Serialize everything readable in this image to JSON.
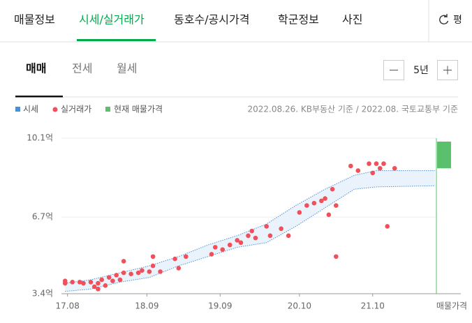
{
  "tabs": [
    "매물정보",
    "시세/실거래가",
    "동호수/공시가격",
    "학군정보",
    "사진"
  ],
  "unit_button": "평",
  "subtabs": [
    "매매",
    "전세",
    "월세"
  ],
  "period": "5년",
  "source": "2022.08.26. KB부동산 기준 / 2022.08. 국토교통부 기준",
  "chart_data": {
    "type": "scatter",
    "xlim": [
      2017.5,
      2022.62
    ],
    "xticks": [
      {
        "value": 2017.583,
        "label": "17.08"
      },
      {
        "value": 2018.667,
        "label": "18.09"
      },
      {
        "value": 2019.667,
        "label": "19.09"
      },
      {
        "value": 2020.75,
        "label": "20.10"
      },
      {
        "value": 2021.75,
        "label": "21.10"
      }
    ],
    "x_end_label": "매물가격",
    "ylim": [
      3.4,
      10.1
    ],
    "yticks": [
      {
        "value": 10.1,
        "label": "10.1억"
      },
      {
        "value": 6.7,
        "label": "6.7억"
      },
      {
        "value": 3.4,
        "label": "3.4억"
      }
    ],
    "series": [
      {
        "name": "시세",
        "color": "#4a90d9",
        "x": [
          2017.55,
          2017.9,
          2018.3,
          2018.7,
          2019.1,
          2019.5,
          2019.9,
          2020.3,
          2020.7,
          2021.1,
          2021.5,
          2021.8,
          2022.6
        ],
        "upper": [
          3.85,
          4.0,
          4.3,
          4.6,
          5.0,
          5.5,
          5.9,
          6.4,
          7.2,
          7.9,
          8.5,
          8.7,
          8.7
        ],
        "lower": [
          3.5,
          3.6,
          3.9,
          4.1,
          4.6,
          5.0,
          5.4,
          5.6,
          6.3,
          7.1,
          7.9,
          8.0,
          8.05
        ]
      },
      {
        "name": "실거래가",
        "color": "#f0505a",
        "x": [
          2017.55,
          2017.55,
          2017.65,
          2017.75,
          2017.8,
          2017.9,
          2017.95,
          2018.0,
          2018.0,
          2018.05,
          2018.1,
          2018.15,
          2018.2,
          2018.25,
          2018.3,
          2018.35,
          2018.35,
          2018.45,
          2018.55,
          2018.6,
          2018.7,
          2018.75,
          2018.75,
          2018.85,
          2019.05,
          2019.1,
          2019.2,
          2019.55,
          2019.6,
          2019.7,
          2019.8,
          2019.9,
          2019.95,
          2020.05,
          2020.1,
          2020.15,
          2020.3,
          2020.35,
          2020.5,
          2020.6,
          2020.75,
          2020.85,
          2020.95,
          2021.05,
          2021.1,
          2021.15,
          2021.2,
          2021.25,
          2021.25,
          2021.45,
          2021.55,
          2021.7,
          2021.75,
          2021.8,
          2021.85,
          2021.9,
          2021.95,
          2022.05
        ],
        "values": [
          3.95,
          3.85,
          3.9,
          3.9,
          3.85,
          3.9,
          3.7,
          3.6,
          3.85,
          4.0,
          3.75,
          4.1,
          3.95,
          4.2,
          4.0,
          4.3,
          4.8,
          4.25,
          4.3,
          4.4,
          4.35,
          4.6,
          5.0,
          4.35,
          4.9,
          4.5,
          5.0,
          5.1,
          5.4,
          5.3,
          5.5,
          5.7,
          5.6,
          5.9,
          6.1,
          5.8,
          6.3,
          5.9,
          6.2,
          5.9,
          6.9,
          7.2,
          7.3,
          7.4,
          7.5,
          6.8,
          7.9,
          7.2,
          5.0,
          8.9,
          8.7,
          9.0,
          8.6,
          9.0,
          8.8,
          9.0,
          6.3,
          8.8
        ]
      },
      {
        "name": "현재 매물가격",
        "color": "#5ac06c",
        "low": 8.8,
        "high": 9.95
      }
    ]
  }
}
